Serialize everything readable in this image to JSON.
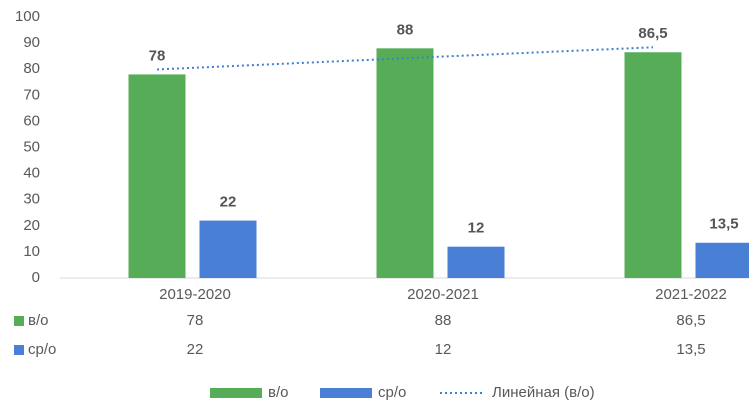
{
  "chart_data": {
    "type": "bar",
    "categories": [
      "2019-2020",
      "2020-2021",
      "2021-2022"
    ],
    "series": [
      {
        "name": "в/о",
        "color": "#57ad57",
        "values": [
          78,
          88,
          86.5
        ],
        "value_labels": [
          "78",
          "88",
          "86,5"
        ]
      },
      {
        "name": "ср/о",
        "color": "#4a7fd6",
        "values": [
          22,
          12,
          13.5
        ],
        "value_labels": [
          "22",
          "12",
          "13,5"
        ]
      }
    ],
    "trendline": {
      "name": "Линейная (в/о)",
      "color": "#3d7fd0",
      "values": [
        79.9,
        84.2,
        88.4
      ]
    },
    "ylim": [
      0,
      100
    ],
    "yticks": [
      0,
      10,
      20,
      30,
      40,
      50,
      60,
      70,
      80,
      90,
      100
    ],
    "grid": false
  }
}
